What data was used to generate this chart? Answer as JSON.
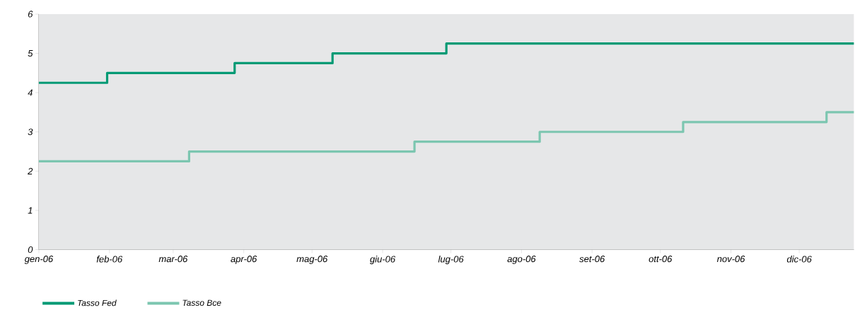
{
  "chart_data": {
    "type": "step",
    "series": [
      {
        "name": "Tasso Fed",
        "color": "#009a74",
        "x": [
          "2006-01-01",
          "2006-01-31",
          "2006-03-28",
          "2006-05-10",
          "2006-06-29",
          "2006-12-25"
        ],
        "values": [
          4.25,
          4.5,
          4.75,
          5.0,
          5.25,
          5.25
        ]
      },
      {
        "name": "Tasso Bce",
        "color": "#7cc6b0",
        "x": [
          "2006-01-01",
          "2006-03-08",
          "2006-06-15",
          "2006-08-09",
          "2006-10-11",
          "2006-12-13",
          "2006-12-25"
        ],
        "values": [
          2.25,
          2.5,
          2.75,
          3.0,
          3.25,
          3.5,
          3.5
        ]
      }
    ],
    "xlim": [
      "2006-01-01",
      "2006-12-25"
    ],
    "xticks": [
      {
        "value": "2006-01-01",
        "label": "gen-06"
      },
      {
        "value": "2006-02-01",
        "label": "feb-06"
      },
      {
        "value": "2006-03-01",
        "label": "mar-06"
      },
      {
        "value": "2006-04-01",
        "label": "apr-06"
      },
      {
        "value": "2006-05-01",
        "label": "mag-06"
      },
      {
        "value": "2006-06-01",
        "label": "giu-06"
      },
      {
        "value": "2006-07-01",
        "label": "lug-06"
      },
      {
        "value": "2006-08-01",
        "label": "ago-06"
      },
      {
        "value": "2006-09-01",
        "label": "set-06"
      },
      {
        "value": "2006-10-01",
        "label": "ott-06"
      },
      {
        "value": "2006-11-01",
        "label": "nov-06"
      },
      {
        "value": "2006-12-01",
        "label": "dic-06"
      }
    ],
    "ylim": [
      0,
      6
    ],
    "yticks": [
      0,
      1,
      2,
      3,
      4,
      5,
      6
    ],
    "grid": false,
    "legend": "bottom left",
    "line_style": "solid",
    "marker": "none"
  }
}
